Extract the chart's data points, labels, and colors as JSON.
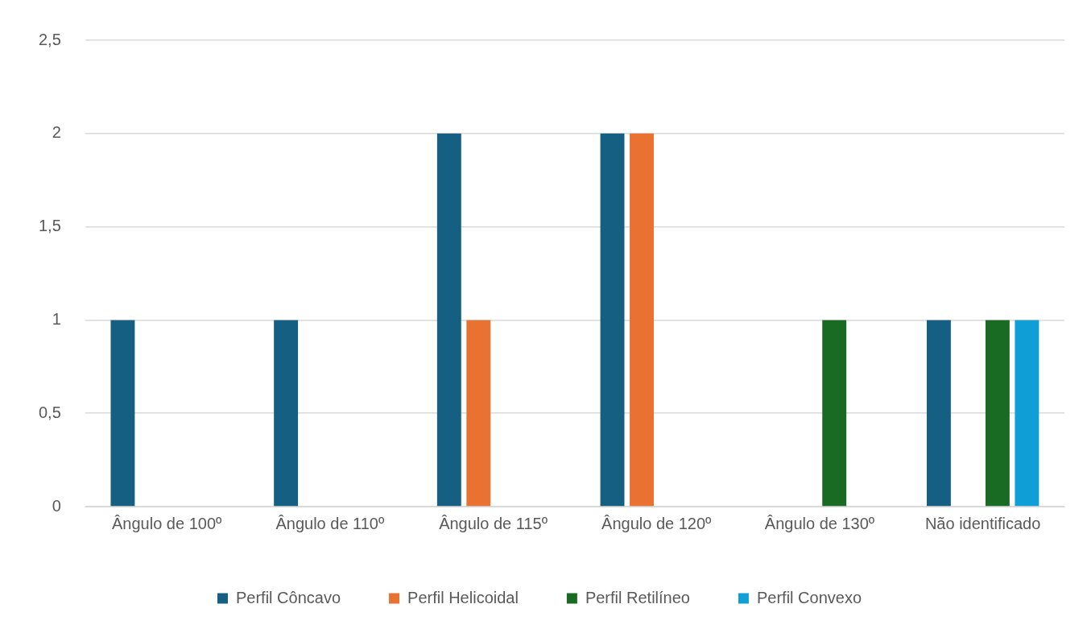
{
  "chart_data": {
    "type": "bar",
    "categories": [
      "Ângulo de 100º",
      "Ângulo de 110º",
      "Ângulo de 115º",
      "Ângulo de 120º",
      "Ângulo de 130º",
      "Não identificado"
    ],
    "series": [
      {
        "name": "Perfil Côncavo",
        "color": "#156082",
        "values": [
          1,
          1,
          2,
          2,
          0,
          1
        ]
      },
      {
        "name": "Perfil Helicoidal",
        "color": "#e97132",
        "values": [
          0,
          0,
          1,
          2,
          0,
          0
        ]
      },
      {
        "name": "Perfil Retilíneo",
        "color": "#196b24",
        "values": [
          0,
          0,
          0,
          0,
          1,
          1
        ]
      },
      {
        "name": "Perfil Convexo",
        "color": "#0f9ed5",
        "values": [
          0,
          0,
          0,
          0,
          0,
          1
        ]
      }
    ],
    "ylim": [
      0,
      2.5
    ],
    "yticks": [
      0,
      {
        "value": 0.5,
        "label": "0,5"
      },
      1,
      {
        "value": 1.5,
        "label": "1,5"
      },
      2,
      {
        "value": 2.5,
        "label": "2,5"
      }
    ],
    "grid": "y",
    "legend": "bottom"
  }
}
